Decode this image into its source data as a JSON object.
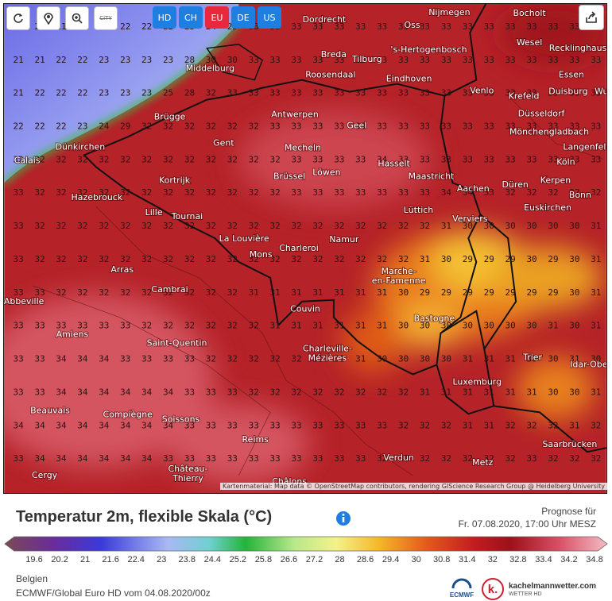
{
  "toolbar": {
    "city_button": "CITY",
    "regions": [
      "HD",
      "CH",
      "EU",
      "DE",
      "US"
    ]
  },
  "map": {
    "grid": [
      [
        21,
        21,
        21,
        21,
        22,
        22,
        22,
        22,
        23,
        24,
        25,
        33,
        33,
        33,
        33,
        33,
        33,
        33,
        33,
        33,
        33,
        33,
        33,
        33,
        33,
        33,
        33,
        33
      ],
      [
        21,
        21,
        22,
        22,
        23,
        23,
        23,
        23,
        28,
        30,
        30,
        33,
        33,
        33,
        33,
        33,
        33,
        33,
        33,
        33,
        33,
        33,
        33,
        33,
        33,
        33,
        33,
        33
      ],
      [
        21,
        22,
        22,
        22,
        23,
        23,
        23,
        25,
        28,
        32,
        33,
        33,
        33,
        33,
        33,
        33,
        33,
        33,
        33,
        33,
        33,
        33,
        33,
        33,
        33,
        33,
        33,
        33
      ],
      [
        22,
        22,
        22,
        23,
        24,
        29,
        32,
        32,
        32,
        32,
        32,
        32,
        33,
        33,
        33,
        33,
        33,
        33,
        33,
        33,
        33,
        33,
        33,
        33,
        33,
        33,
        33,
        33
      ],
      [
        32,
        32,
        32,
        32,
        32,
        32,
        32,
        32,
        32,
        32,
        32,
        32,
        32,
        33,
        33,
        33,
        33,
        34,
        33,
        33,
        33,
        33,
        33,
        33,
        33,
        33,
        33,
        33
      ],
      [
        33,
        32,
        32,
        32,
        32,
        32,
        32,
        32,
        32,
        32,
        32,
        32,
        32,
        33,
        33,
        33,
        33,
        33,
        33,
        33,
        34,
        34,
        33,
        32,
        32,
        32,
        32,
        32
      ],
      [
        33,
        32,
        32,
        32,
        32,
        32,
        32,
        32,
        32,
        32,
        32,
        32,
        32,
        32,
        32,
        32,
        32,
        32,
        32,
        32,
        31,
        30,
        30,
        30,
        30,
        30,
        30,
        31
      ],
      [
        33,
        32,
        32,
        32,
        32,
        32,
        32,
        32,
        32,
        32,
        32,
        32,
        32,
        32,
        32,
        32,
        32,
        32,
        32,
        31,
        30,
        29,
        29,
        29,
        30,
        29,
        30,
        31
      ],
      [
        33,
        33,
        32,
        32,
        32,
        32,
        32,
        32,
        32,
        32,
        32,
        31,
        31,
        31,
        31,
        31,
        31,
        31,
        30,
        29,
        29,
        29,
        29,
        29,
        29,
        29,
        30,
        31
      ],
      [
        33,
        33,
        33,
        33,
        33,
        33,
        32,
        32,
        32,
        32,
        32,
        32,
        31,
        31,
        31,
        31,
        31,
        31,
        30,
        30,
        30,
        30,
        30,
        30,
        30,
        31,
        30,
        31
      ],
      [
        33,
        33,
        34,
        34,
        34,
        33,
        33,
        33,
        33,
        32,
        32,
        32,
        32,
        32,
        31,
        31,
        31,
        30,
        30,
        30,
        30,
        31,
        31,
        31,
        30,
        30,
        31,
        30
      ],
      [
        33,
        33,
        34,
        34,
        34,
        34,
        34,
        34,
        33,
        33,
        33,
        32,
        32,
        32,
        32,
        32,
        32,
        32,
        32,
        31,
        31,
        31,
        31,
        31,
        31,
        30,
        30,
        31
      ],
      [
        34,
        34,
        34,
        34,
        34,
        34,
        34,
        34,
        33,
        33,
        33,
        33,
        33,
        33,
        33,
        33,
        33,
        33,
        32,
        32,
        32,
        31,
        31,
        32,
        32,
        32,
        31,
        32
      ],
      [
        33,
        34,
        34,
        34,
        34,
        34,
        34,
        33,
        33,
        33,
        33,
        33,
        33,
        33,
        33,
        33,
        33,
        32,
        32,
        32,
        32,
        32,
        32,
        32,
        33,
        32,
        32,
        32
      ]
    ],
    "cities": [
      "Dordrecht",
      "Nijmegen",
      "Bocholt",
      "Oss",
      "Wesel",
      "'s-Hertogenbosch",
      "Breda",
      "Tilburg",
      "Recklinghausen",
      "Middelburg",
      "Roosendaal",
      "Eindhoven",
      "Essen",
      "Venlo",
      "Krefeld",
      "Duisburg",
      "Wu",
      "Antwerpen",
      "Brügge",
      "Geel",
      "Düsseldorf",
      "Mönchengladbach",
      "Gent",
      "Mecheln",
      "Dünkirchen",
      "Langenfeld",
      "Calais",
      "Hasselt",
      "Köln",
      "Brüssel",
      "Löwen",
      "Maastricht",
      "Kortrijk",
      "Düren",
      "Kerpen",
      "Hazebrouck",
      "Aachen",
      "Bonn",
      "Lüttich",
      "Lille",
      "Tournai",
      "Verviers",
      "Euskirchen",
      "La Louvière",
      "Namur",
      "Mons",
      "Charleroi",
      "Arras",
      [
        "Marche-",
        "en-Famenne"
      ],
      "Cambrai",
      "Abbeville",
      "Couvin",
      "Bastogne",
      "Amiens",
      "Saint-Quentin",
      [
        "Charleville-",
        "Mézières"
      ],
      "Trier",
      "Idar-Obe",
      "Luxemburg",
      "Beauvais",
      "Compiègne",
      "Soissons",
      "Saarbrücken",
      "Reims",
      "Verdun",
      "Metz",
      [
        "Château-",
        "Thierry"
      ],
      "Cergy",
      "Châlons"
    ],
    "attribution": "Kartenmaterial: Map data © OpenStreetMap contributors, rendering GIScience Research Group @ Heidelberg University"
  },
  "legend": {
    "title": "Temperatur 2m, flexible Skala (°C)",
    "forecast_label": "Prognose für",
    "forecast_time": "Fr. 07.08.2020, 17:00 Uhr MESZ",
    "scale_labels": [
      19.6,
      20.2,
      21,
      21.6,
      22.4,
      23,
      23.8,
      24.4,
      25.2,
      25.8,
      26.6,
      27.2,
      28,
      28.6,
      29.4,
      30,
      30.8,
      31.4,
      32,
      32.8,
      33.4,
      34.2,
      34.8
    ]
  },
  "footer": {
    "region": "Belgien",
    "model_run": "ECMWF/Global Euro HD vom 04.08.2020/00z",
    "ecmwf": "ECMWF",
    "logo_mark": "k.",
    "brand": "kachelmannwetter.com",
    "brand_sub": "WETTER HD"
  }
}
